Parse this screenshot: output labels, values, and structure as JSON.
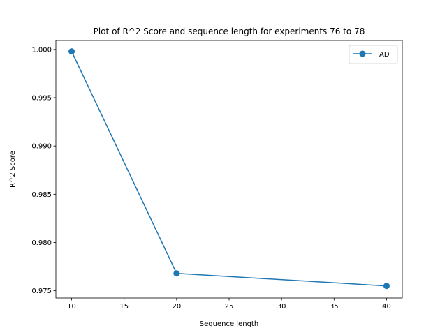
{
  "chart_data": {
    "type": "line",
    "title": "Plot of R^2 Score and sequence length for experiments 76 to 78",
    "xlabel": "Sequence length",
    "ylabel": "R^2 Score",
    "xlim": [
      8.5,
      41.5
    ],
    "ylim": [
      0.97425,
      1.00093
    ],
    "xticks": [
      10,
      15,
      20,
      25,
      30,
      35,
      40
    ],
    "xtick_labels": [
      "10",
      "15",
      "20",
      "25",
      "30",
      "35",
      "40"
    ],
    "yticks": [
      0.975,
      0.98,
      0.985,
      0.99,
      0.995,
      1.0
    ],
    "ytick_labels": [
      "0.975",
      "0.980",
      "0.985",
      "0.990",
      "0.995",
      "1.000"
    ],
    "grid": false,
    "legend_position": "top-right",
    "series": [
      {
        "name": "AD",
        "color": "#1f77b4",
        "marker": "circle",
        "x": [
          10,
          20,
          40
        ],
        "y": [
          0.9998,
          0.9768,
          0.9755
        ]
      }
    ]
  }
}
